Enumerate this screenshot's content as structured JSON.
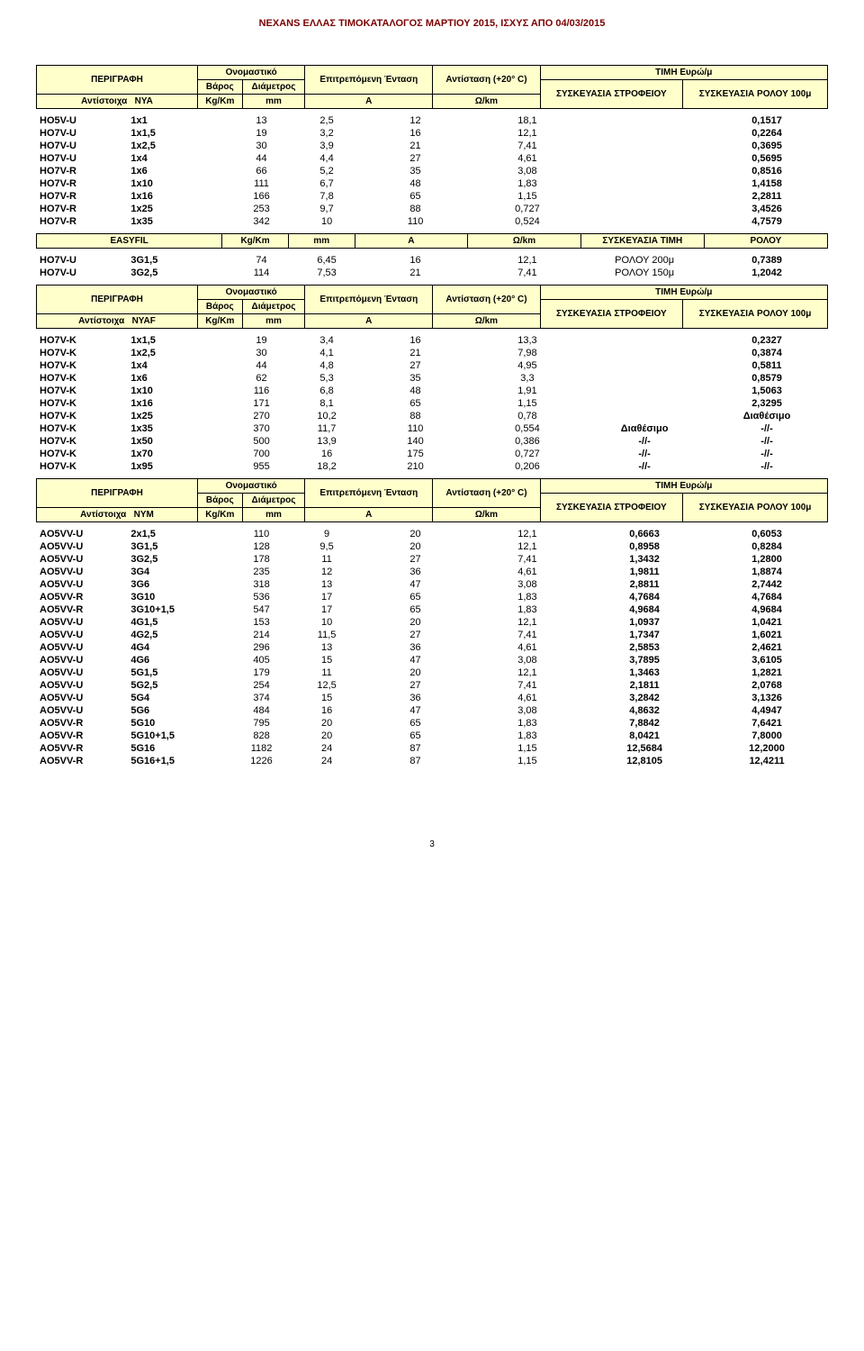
{
  "page_title": "NEXANS ΕΛΛΑΣ ΤΙΜΟΚΑΤΑΛΟΓΟΣ ΜΑΡΤΙΟΥ 2015, ΙΣΧΥΣ ΑΠΟ 04/03/2015",
  "page_number": "3",
  "header_common": {
    "desc": "ΠΕΡΙΓΡΑΦΗ",
    "nominal": "Ονομαστικό",
    "weight": "Βάρος",
    "diameter": "Διάμετρος",
    "current": "Επιτρεπόμενη Ένταση",
    "resistance": "Αντίσταση (+20° C)",
    "price": "ΤΙΜΗ Ευρώ/μ",
    "pack1": "ΣΥΣΚΕΥΑΣΙΑ ΣΤΡΟΦΕΙΟΥ",
    "pack2": "ΣΥΣΚΕΥΑΣΙΑ ΡΟΛΟΥ 100μ",
    "unit_kgkm": "Kg/Km",
    "unit_mm": "mm",
    "unit_a": "A",
    "unit_ohm": "Ω/km",
    "equiv": "Αντίστοιχα"
  },
  "section1": {
    "equiv_type": "NYA",
    "rows": [
      [
        "HO5V-U",
        "1x1",
        "13",
        "2,5",
        "12",
        "18,1",
        "",
        "0,1517"
      ],
      [
        "HO7V-U",
        "1x1,5",
        "19",
        "3,2",
        "16",
        "12,1",
        "",
        "0,2264"
      ],
      [
        "HO7V-U",
        "1x2,5",
        "30",
        "3,9",
        "21",
        "7,41",
        "",
        "0,3695"
      ],
      [
        "HO7V-U",
        "1x4",
        "44",
        "4,4",
        "27",
        "4,61",
        "",
        "0,5695"
      ],
      [
        "HO7V-R",
        "1x6",
        "66",
        "5,2",
        "35",
        "3,08",
        "",
        "0,8516"
      ],
      [
        "HO7V-R",
        "1x10",
        "111",
        "6,7",
        "48",
        "1,83",
        "",
        "1,4158"
      ],
      [
        "HO7V-R",
        "1x16",
        "166",
        "7,8",
        "65",
        "1,15",
        "",
        "2,2811"
      ],
      [
        "HO7V-R",
        "1x25",
        "253",
        "9,7",
        "88",
        "0,727",
        "",
        "3,4526"
      ],
      [
        "HO7V-R",
        "1x35",
        "342",
        "10",
        "110",
        "0,524",
        "",
        "4,7579"
      ]
    ]
  },
  "easyfil": {
    "label": "EASYFIL",
    "h1": "Kg/Km",
    "h2": "mm",
    "h3": "A",
    "h4": "Ω/km",
    "h5": "ΣΥΣΚΕΥΑΣΙΑ ΤΙΜΗ",
    "h6": "ΡΟΛΟΥ",
    "rows": [
      [
        "HO7V-U",
        "3G1,5",
        "74",
        "6,45",
        "16",
        "12,1",
        "ΡΟΛΟΥ 200μ",
        "0,7389"
      ],
      [
        "HO7V-U",
        "3G2,5",
        "114",
        "7,53",
        "21",
        "7,41",
        "ΡΟΛΟΥ 150μ",
        "1,2042"
      ]
    ]
  },
  "section2": {
    "equiv_type": "NYAF",
    "rows": [
      [
        "HO7V-K",
        "1x1,5",
        "19",
        "3,4",
        "16",
        "13,3",
        "",
        "0,2327"
      ],
      [
        "HO7V-K",
        "1x2,5",
        "30",
        "4,1",
        "21",
        "7,98",
        "",
        "0,3874"
      ],
      [
        "HO7V-K",
        "1x4",
        "44",
        "4,8",
        "27",
        "4,95",
        "",
        "0,5811"
      ],
      [
        "HO7V-K",
        "1x6",
        "62",
        "5,3",
        "35",
        "3,3",
        "",
        "0,8579"
      ],
      [
        "HO7V-K",
        "1x10",
        "116",
        "6,8",
        "48",
        "1,91",
        "",
        "1,5063"
      ],
      [
        "HO7V-K",
        "1x16",
        "171",
        "8,1",
        "65",
        "1,15",
        "",
        "2,3295"
      ],
      [
        "HO7V-K",
        "1x25",
        "270",
        "10,2",
        "88",
        "0,78",
        "",
        "Διαθέσιμο"
      ],
      [
        "HO7V-K",
        "1x35",
        "370",
        "11,7",
        "110",
        "0,554",
        "Διαθέσιμο",
        "-//-"
      ],
      [
        "HO7V-K",
        "1x50",
        "500",
        "13,9",
        "140",
        "0,386",
        "-//-",
        "-//-"
      ],
      [
        "HO7V-K",
        "1x70",
        "700",
        "16",
        "175",
        "0,727",
        "-//-",
        "-//-"
      ],
      [
        "HO7V-K",
        "1x95",
        "955",
        "18,2",
        "210",
        "0,206",
        "-//-",
        "-//-"
      ]
    ]
  },
  "section3": {
    "equiv_type": "NYM",
    "rows": [
      [
        "AO5VV-U",
        "2x1,5",
        "110",
        "9",
        "20",
        "12,1",
        "0,6663",
        "0,6053"
      ],
      [
        "AO5VV-U",
        "3G1,5",
        "128",
        "9,5",
        "20",
        "12,1",
        "0,8958",
        "0,8284"
      ],
      [
        "AO5VV-U",
        "3G2,5",
        "178",
        "11",
        "27",
        "7,41",
        "1,3432",
        "1,2800"
      ],
      [
        "AO5VV-U",
        "3G4",
        "235",
        "12",
        "36",
        "4,61",
        "1,9811",
        "1,8874"
      ],
      [
        "AO5VV-U",
        "3G6",
        "318",
        "13",
        "47",
        "3,08",
        "2,8811",
        "2,7442"
      ],
      [
        "AO5VV-R",
        "3G10",
        "536",
        "17",
        "65",
        "1,83",
        "4,7684",
        "4,7684"
      ],
      [
        "AO5VV-R",
        "3G10+1,5",
        "547",
        "17",
        "65",
        "1,83",
        "4,9684",
        "4,9684"
      ],
      [
        "AO5VV-U",
        "4G1,5",
        "153",
        "10",
        "20",
        "12,1",
        "1,0937",
        "1,0421"
      ],
      [
        "AO5VV-U",
        "4G2,5",
        "214",
        "11,5",
        "27",
        "7,41",
        "1,7347",
        "1,6021"
      ],
      [
        "AO5VV-U",
        "4G4",
        "296",
        "13",
        "36",
        "4,61",
        "2,5853",
        "2,4621"
      ],
      [
        "AO5VV-U",
        "4G6",
        "405",
        "15",
        "47",
        "3,08",
        "3,7895",
        "3,6105"
      ],
      [
        "AO5VV-U",
        "5G1,5",
        "179",
        "11",
        "20",
        "12,1",
        "1,3463",
        "1,2821"
      ],
      [
        "AO5VV-U",
        "5G2,5",
        "254",
        "12,5",
        "27",
        "7,41",
        "2,1811",
        "2,0768"
      ],
      [
        "AO5VV-U",
        "5G4",
        "374",
        "15",
        "36",
        "4,61",
        "3,2842",
        "3,1326"
      ],
      [
        "AO5VV-U",
        "5G6",
        "484",
        "16",
        "47",
        "3,08",
        "4,8632",
        "4,4947"
      ],
      [
        "AO5VV-R",
        "5G10",
        "795",
        "20",
        "65",
        "1,83",
        "7,8842",
        "7,6421"
      ],
      [
        "AO5VV-R",
        "5G10+1,5",
        "828",
        "20",
        "65",
        "1,83",
        "8,0421",
        "7,8000"
      ],
      [
        "AO5VV-R",
        "5G16",
        "1182",
        "24",
        "87",
        "1,15",
        "12,5684",
        "12,2000"
      ],
      [
        "AO5VV-R",
        "5G16+1,5",
        "1226",
        "24",
        "87",
        "1,15",
        "12,8105",
        "12,4211"
      ]
    ]
  }
}
